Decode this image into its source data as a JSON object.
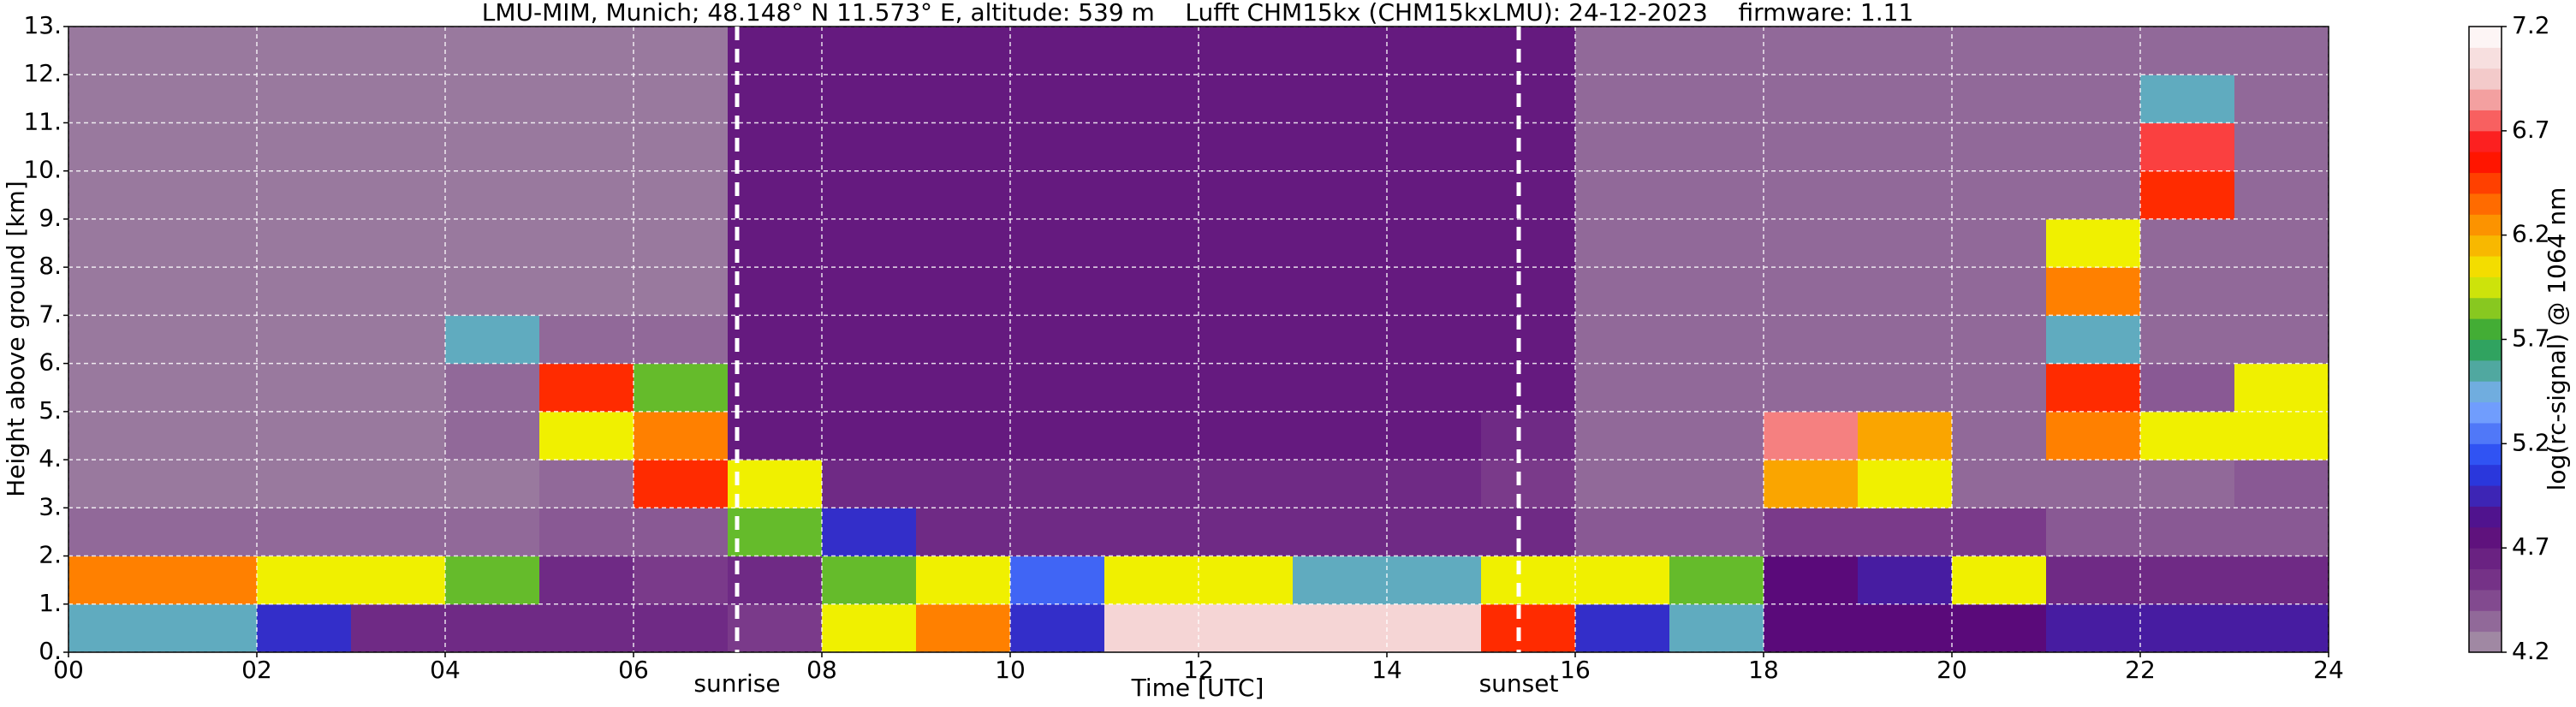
{
  "chart_data": {
    "type": "heatmap",
    "title": "LMU-MIM, Munich; 48.148° N 11.573° E, altitude: 539 m    Lufft CHM15kx (CHM15kxLMU): 24-12-2023    firmware: 1.11",
    "xlabel": "Time [UTC]",
    "ylabel": "Height above ground [km]",
    "colorbar_label": "log(rc-signal) @ 1064 nm",
    "x": [
      0,
      1,
      2,
      3,
      4,
      5,
      6,
      7,
      8,
      9,
      10,
      11,
      12,
      13,
      14,
      15,
      16,
      17,
      18,
      19,
      20,
      21,
      22,
      23,
      24
    ],
    "y": [
      0,
      1,
      2,
      3,
      4,
      5,
      6,
      7,
      8,
      9,
      10,
      11,
      12,
      13
    ],
    "z": [
      [
        5.5,
        5.5,
        5.0,
        4.6,
        4.6,
        4.6,
        4.6,
        4.5,
        6.0,
        6.3,
        5.0,
        7.0,
        7.0,
        7.0,
        7.0,
        6.5,
        5.0,
        5.5,
        4.8,
        4.8,
        4.8,
        4.9,
        4.9,
        4.9
      ],
      [
        6.3,
        6.3,
        6.0,
        6.0,
        5.8,
        4.6,
        4.5,
        4.6,
        5.8,
        6.0,
        5.2,
        6.0,
        6.0,
        5.5,
        5.5,
        6.0,
        6.0,
        5.8,
        4.8,
        4.9,
        6.0,
        4.6,
        4.6,
        4.6
      ],
      [
        4.35,
        4.35,
        4.35,
        4.35,
        4.35,
        4.4,
        4.4,
        5.8,
        5.0,
        4.6,
        4.6,
        4.6,
        4.6,
        4.6,
        4.6,
        4.6,
        4.4,
        4.4,
        4.5,
        4.5,
        4.5,
        4.4,
        4.4,
        4.4
      ],
      [
        4.3,
        4.3,
        4.3,
        4.3,
        4.3,
        4.35,
        6.5,
        6.0,
        4.6,
        4.6,
        4.6,
        4.6,
        4.6,
        4.6,
        4.6,
        4.5,
        4.35,
        4.35,
        6.2,
        6.0,
        4.35,
        4.35,
        4.35,
        4.4
      ],
      [
        4.3,
        4.3,
        4.3,
        4.3,
        4.35,
        6.0,
        6.3,
        4.7,
        4.7,
        4.7,
        4.7,
        4.7,
        4.7,
        4.7,
        4.7,
        4.6,
        4.35,
        4.35,
        6.8,
        6.2,
        4.35,
        6.3,
        6.0,
        6.0
      ],
      [
        4.3,
        4.3,
        4.3,
        4.3,
        4.35,
        6.5,
        5.8,
        4.7,
        4.7,
        4.7,
        4.7,
        4.7,
        4.7,
        4.7,
        4.7,
        4.7,
        4.35,
        4.35,
        4.35,
        4.35,
        4.35,
        6.5,
        4.4,
        6.0
      ],
      [
        4.3,
        4.3,
        4.3,
        4.3,
        5.5,
        4.35,
        4.35,
        4.7,
        4.7,
        4.7,
        4.7,
        4.7,
        4.7,
        4.7,
        4.7,
        4.7,
        4.35,
        4.35,
        4.35,
        4.35,
        4.35,
        5.5,
        4.35,
        4.35
      ],
      [
        4.3,
        4.3,
        4.3,
        4.3,
        4.3,
        4.3,
        4.3,
        4.7,
        4.7,
        4.7,
        4.7,
        4.7,
        4.7,
        4.7,
        4.7,
        4.7,
        4.35,
        4.35,
        4.35,
        4.35,
        4.35,
        6.3,
        4.35,
        4.35
      ],
      [
        4.3,
        4.3,
        4.3,
        4.3,
        4.3,
        4.3,
        4.3,
        4.7,
        4.7,
        4.7,
        4.7,
        4.7,
        4.7,
        4.7,
        4.7,
        4.7,
        4.35,
        4.35,
        4.35,
        4.35,
        4.35,
        6.0,
        4.35,
        4.35
      ],
      [
        4.3,
        4.3,
        4.3,
        4.3,
        4.3,
        4.3,
        4.3,
        4.7,
        4.7,
        4.7,
        4.7,
        4.7,
        4.7,
        4.7,
        4.7,
        4.7,
        4.35,
        4.35,
        4.35,
        4.35,
        4.35,
        4.35,
        6.5,
        4.35
      ],
      [
        4.3,
        4.3,
        4.3,
        4.3,
        4.3,
        4.3,
        4.3,
        4.7,
        4.7,
        4.7,
        4.7,
        4.7,
        4.7,
        4.7,
        4.7,
        4.7,
        4.35,
        4.35,
        4.35,
        4.35,
        4.35,
        4.35,
        6.7,
        4.35
      ],
      [
        4.3,
        4.3,
        4.3,
        4.3,
        4.3,
        4.3,
        4.3,
        4.7,
        4.7,
        4.7,
        4.7,
        4.7,
        4.7,
        4.7,
        4.7,
        4.7,
        4.35,
        4.35,
        4.35,
        4.35,
        4.35,
        4.35,
        5.5,
        4.35
      ],
      [
        4.3,
        4.3,
        4.3,
        4.3,
        4.3,
        4.3,
        4.3,
        4.7,
        4.7,
        4.7,
        4.7,
        4.7,
        4.7,
        4.7,
        4.7,
        4.7,
        4.35,
        4.35,
        4.35,
        4.35,
        4.35,
        4.35,
        4.35,
        4.35
      ]
    ],
    "xlim": [
      0,
      24
    ],
    "ylim": [
      0,
      13
    ],
    "zlim": [
      4.2,
      7.2
    ],
    "xticks": [
      {
        "value": 0,
        "label": "00"
      },
      {
        "value": 2,
        "label": "02"
      },
      {
        "value": 4,
        "label": "04"
      },
      {
        "value": 6,
        "label": "06"
      },
      {
        "value": 8,
        "label": "08"
      },
      10,
      12,
      14,
      16,
      18,
      20,
      22,
      24
    ],
    "yticks": [
      {
        "value": 0,
        "label": "0."
      },
      {
        "value": 1,
        "label": "1."
      },
      {
        "value": 2,
        "label": "2."
      },
      {
        "value": 3,
        "label": "3."
      },
      {
        "value": 4,
        "label": "4."
      },
      {
        "value": 5,
        "label": "5."
      },
      {
        "value": 6,
        "label": "6."
      },
      {
        "value": 7,
        "label": "7."
      },
      {
        "value": 8,
        "label": "8."
      },
      {
        "value": 9,
        "label": "9."
      },
      {
        "value": 10,
        "label": "10."
      },
      {
        "value": 11,
        "label": "11."
      },
      {
        "value": 12,
        "label": "12."
      },
      {
        "value": 13,
        "label": "13."
      }
    ],
    "zticks": [
      4.2,
      4.7,
      5.2,
      5.7,
      6.2,
      6.7,
      7.2
    ],
    "colorscale": [
      "#a898a8",
      "#7a3a8a",
      "#5a0a7a",
      "#2040f0",
      "#80b0ff",
      "#20a040",
      "#f0f000",
      "#ff8000",
      "#ff0000",
      "#f0c0c0",
      "#ffffff"
    ],
    "grid": true,
    "annotations": [
      {
        "text": "sunrise",
        "x": 7.1
      },
      {
        "text": "sunset",
        "x": 15.4
      }
    ]
  }
}
